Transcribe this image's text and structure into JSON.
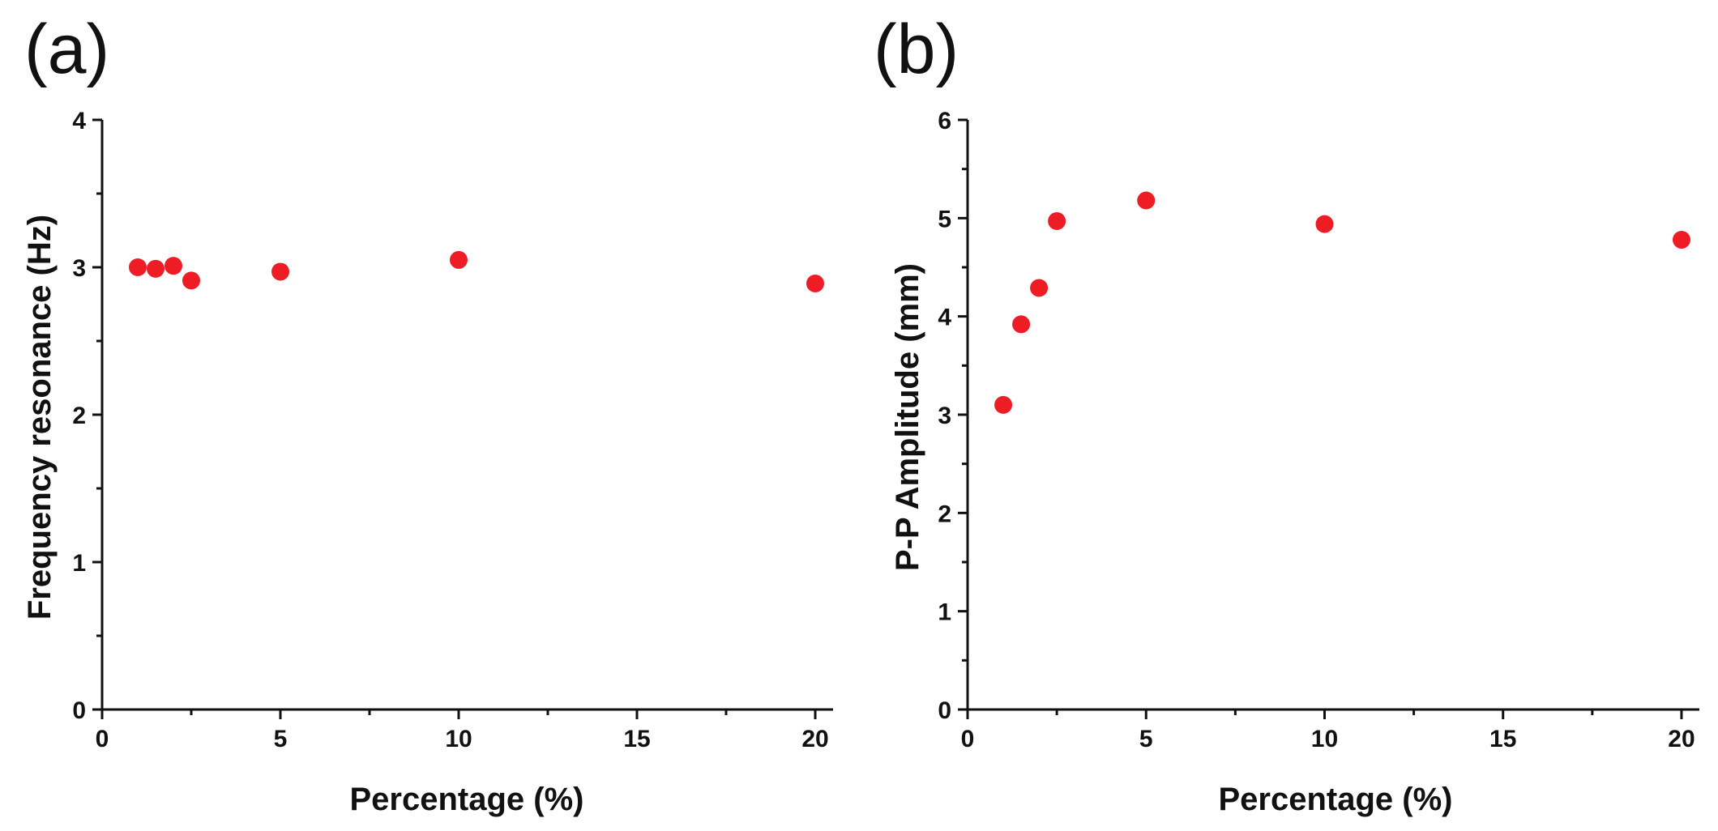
{
  "chart_data": [
    {
      "type": "scatter",
      "panel_label": "(a)",
      "title": "",
      "xlabel": "Percentage (%)",
      "ylabel": "Frequency  resonance (Hz)",
      "xlim": [
        0,
        20.5
      ],
      "ylim": [
        0,
        4
      ],
      "x_ticks": [
        0,
        5,
        10,
        15,
        20
      ],
      "x_tick_labels": [
        "0",
        "5",
        "10",
        "15",
        "20"
      ],
      "x_minor_ticks": [
        2.5,
        7.5,
        12.5,
        17.5
      ],
      "y_ticks": [
        0,
        1,
        2,
        3,
        4
      ],
      "y_tick_labels": [
        "0",
        "1",
        "2",
        "3",
        "4"
      ],
      "y_minor_ticks": [
        0.5,
        1.5,
        2.5,
        3.5
      ],
      "marker_color": "#ee1c25",
      "series": [
        {
          "name": "Frequency resonance",
          "x": [
            1,
            1.5,
            2,
            2.5,
            5,
            10,
            20
          ],
          "y": [
            3.0,
            2.99,
            3.01,
            2.91,
            2.97,
            3.05,
            2.89
          ]
        }
      ]
    },
    {
      "type": "scatter",
      "panel_label": "(b)",
      "title": "",
      "xlabel": "Percentage (%)",
      "ylabel": "P-P Amplitude (mm)",
      "xlim": [
        0,
        20.5
      ],
      "ylim": [
        0,
        6
      ],
      "x_ticks": [
        0,
        5,
        10,
        15,
        20
      ],
      "x_tick_labels": [
        "0",
        "5",
        "10",
        "15",
        "20"
      ],
      "x_minor_ticks": [
        2.5,
        7.5,
        12.5,
        17.5
      ],
      "y_ticks": [
        0,
        1,
        2,
        3,
        4,
        5,
        6
      ],
      "y_tick_labels": [
        "0",
        "1",
        "2",
        "3",
        "4",
        "5",
        "6"
      ],
      "y_minor_ticks": [
        0.5,
        1.5,
        2.5,
        3.5,
        4.5,
        5.5
      ],
      "marker_color": "#ee1c25",
      "series": [
        {
          "name": "P-P Amplitude",
          "x": [
            1,
            1.5,
            2,
            2.5,
            5,
            10,
            20
          ],
          "y": [
            3.1,
            3.92,
            4.29,
            4.97,
            5.18,
            4.94,
            4.78
          ]
        }
      ]
    }
  ]
}
